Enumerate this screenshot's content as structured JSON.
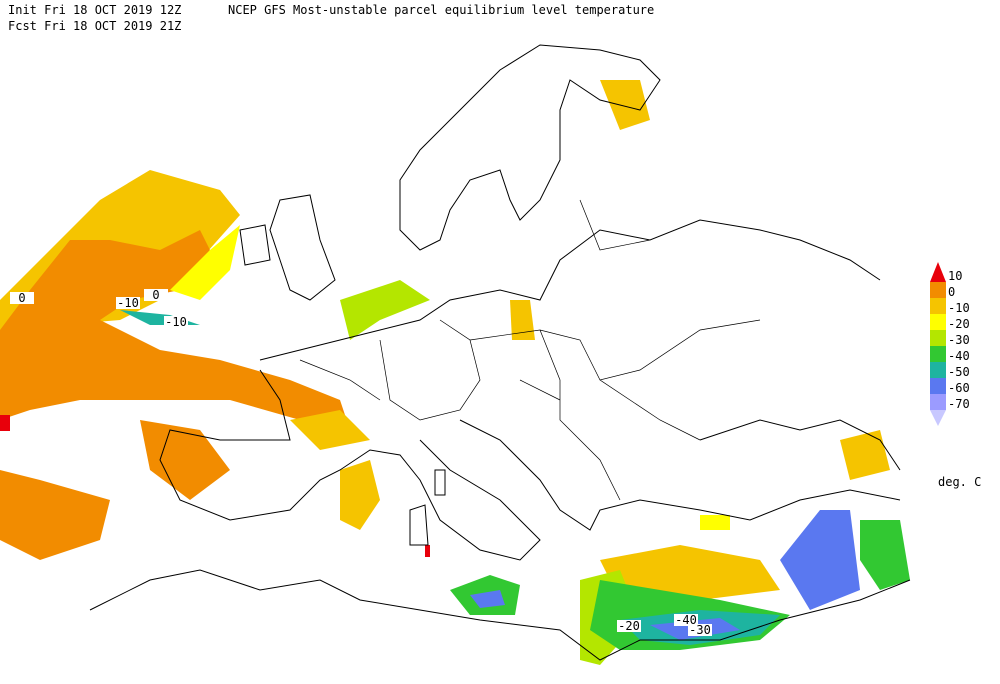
{
  "header": {
    "init": "Init  Fri 18 OCT 2019 12Z",
    "fcst": "Fcst Fri 18 OCT 2019 21Z",
    "title": "NCEP GFS Most-unstable parcel equilibrium level temperature"
  },
  "map": {
    "contour_labels": [
      "0",
      "-10",
      "0",
      "-10",
      "-20",
      "-40",
      "-30"
    ]
  },
  "legend": {
    "labels": [
      "10",
      "0",
      "-10",
      "-20",
      "-30",
      "-40",
      "-50",
      "-60",
      "-70"
    ],
    "colors": [
      "#e8000b",
      "#f28c00",
      "#f5c400",
      "#ffff00",
      "#b4e600",
      "#32c832",
      "#1eb4a0",
      "#5a78f0",
      "#9b9bff",
      "#c8c8ff",
      "#e6e6ff"
    ],
    "unit": "deg. C"
  }
}
